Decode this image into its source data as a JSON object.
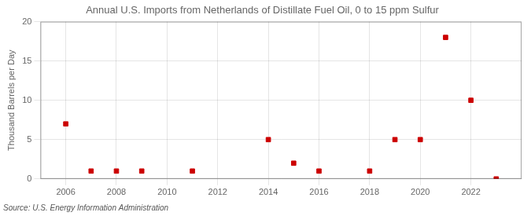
{
  "chart_data": {
    "type": "scatter",
    "title": "Annual U.S. Imports from Netherlands of Distillate Fuel Oil, 0 to 15 ppm Sulfur",
    "ylabel": "Thousand Barrels per Day",
    "source": "Source: U.S. Energy Information Administration",
    "x": [
      2006,
      2007,
      2008,
      2009,
      2011,
      2014,
      2015,
      2016,
      2018,
      2019,
      2020,
      2021,
      2022,
      2023
    ],
    "values": [
      7,
      1,
      1,
      1,
      1,
      5,
      2,
      1,
      1,
      5,
      5,
      18,
      10,
      0
    ],
    "color": "#cc0000",
    "marker": "square",
    "xlim": [
      2005.0,
      2024.0
    ],
    "xticks": [
      2006,
      2008,
      2010,
      2012,
      2014,
      2016,
      2018,
      2020,
      2022
    ],
    "ylim": [
      0,
      20
    ],
    "yticks": [
      0,
      5,
      10,
      15,
      20
    ],
    "grid": true
  }
}
